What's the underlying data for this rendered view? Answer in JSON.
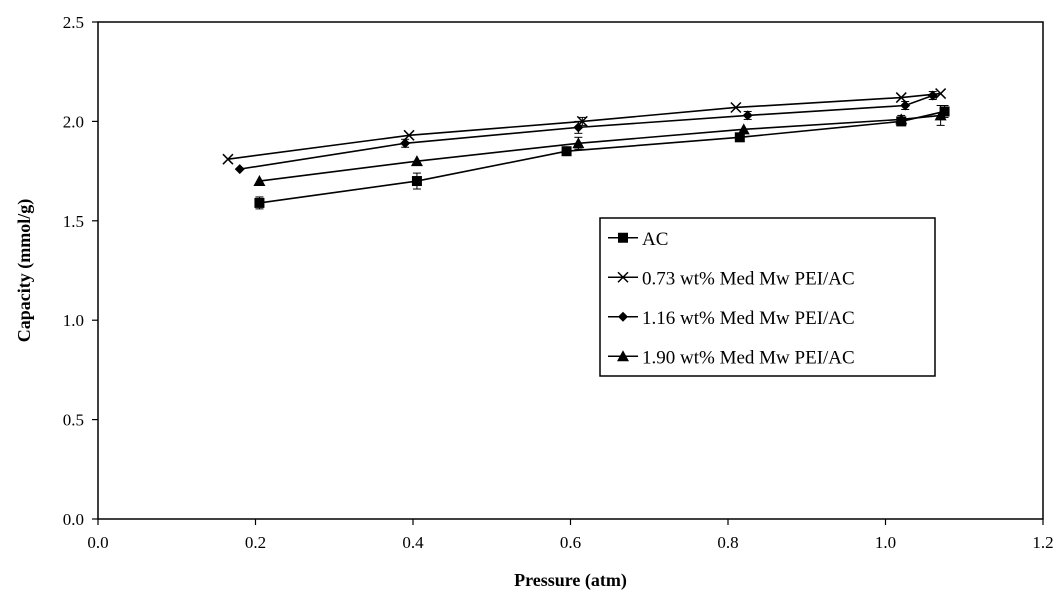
{
  "chart_data": {
    "type": "line",
    "title": "",
    "xlabel": "Pressure (atm)",
    "ylabel": "Capacity (mmol/g)",
    "xlim": [
      0.0,
      1.2
    ],
    "ylim": [
      0.0,
      2.5
    ],
    "x_ticks": [
      "0.0",
      "0.2",
      "0.4",
      "0.6",
      "0.8",
      "1.0",
      "1.2"
    ],
    "y_ticks": [
      "0.0",
      "0.5",
      "1.0",
      "1.5",
      "2.0",
      "2.5"
    ],
    "grid": false,
    "legend_position": "right-center",
    "series": [
      {
        "name": "AC",
        "marker": "square",
        "x": [
          0.205,
          0.405,
          0.595,
          0.815,
          1.02,
          1.075
        ],
        "y": [
          1.59,
          1.7,
          1.85,
          1.92,
          2.0,
          2.05
        ],
        "error": [
          0.03,
          0.04,
          0.01,
          0.01,
          0.01,
          0.03
        ]
      },
      {
        "name": "0.73 wt% Med Mw PEI/AC",
        "marker": "x",
        "x": [
          0.165,
          0.395,
          0.615,
          0.81,
          1.02,
          1.07
        ],
        "y": [
          1.81,
          1.93,
          2.0,
          2.07,
          2.12,
          2.14
        ],
        "error": [
          0.0,
          0.0,
          0.02,
          0.0,
          0.0,
          0.0
        ]
      },
      {
        "name": "1.16 wt% Med Mw PEI/AC",
        "marker": "diamond",
        "x": [
          0.18,
          0.39,
          0.61,
          0.825,
          1.025,
          1.06
        ],
        "y": [
          1.76,
          1.89,
          1.97,
          2.03,
          2.08,
          2.13
        ],
        "error": [
          0.0,
          0.02,
          0.03,
          0.02,
          0.02,
          0.02
        ]
      },
      {
        "name": "1.90 wt% Med Mw PEI/AC",
        "marker": "triangle",
        "x": [
          0.205,
          0.405,
          0.61,
          0.82,
          1.02,
          1.07
        ],
        "y": [
          1.7,
          1.8,
          1.89,
          1.96,
          2.01,
          2.03
        ],
        "error": [
          0.0,
          0.0,
          0.03,
          0.0,
          0.02,
          0.05
        ]
      }
    ]
  }
}
